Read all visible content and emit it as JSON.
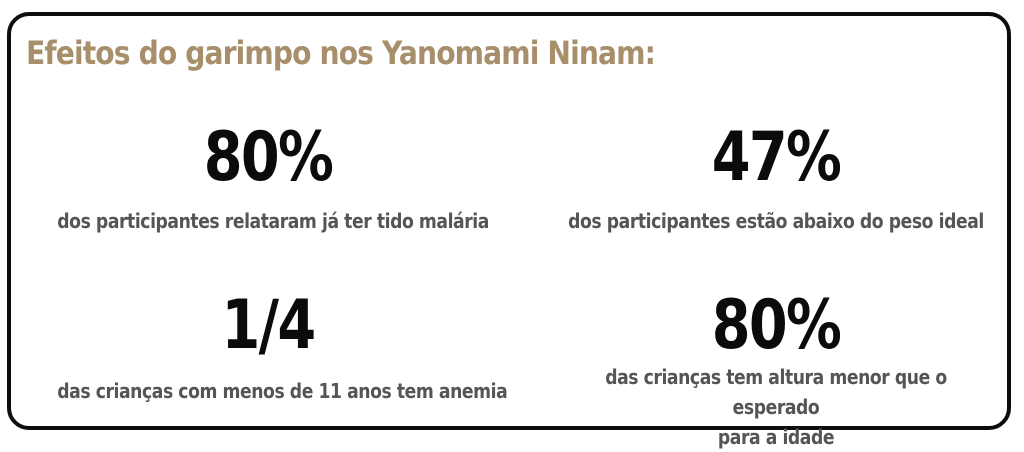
{
  "card": {
    "title": "Efeitos do garimpo nos Yanomami Ninam:",
    "stats": [
      {
        "value": "80%",
        "description": "dos participantes relataram já ter tido malária"
      },
      {
        "value": "47%",
        "description": "dos participantes estão abaixo do peso ideal"
      },
      {
        "value": "1/4",
        "description": "das crianças com menos de 11 anos tem anemia"
      },
      {
        "value": "80%",
        "description_line1": "das crianças tem altura menor que o esperado",
        "description_line2": "para a idade"
      }
    ]
  },
  "colors": {
    "title": "#a68f6a",
    "value": "#0b0b0b",
    "description": "#555555",
    "border": "#0d0d0d"
  }
}
